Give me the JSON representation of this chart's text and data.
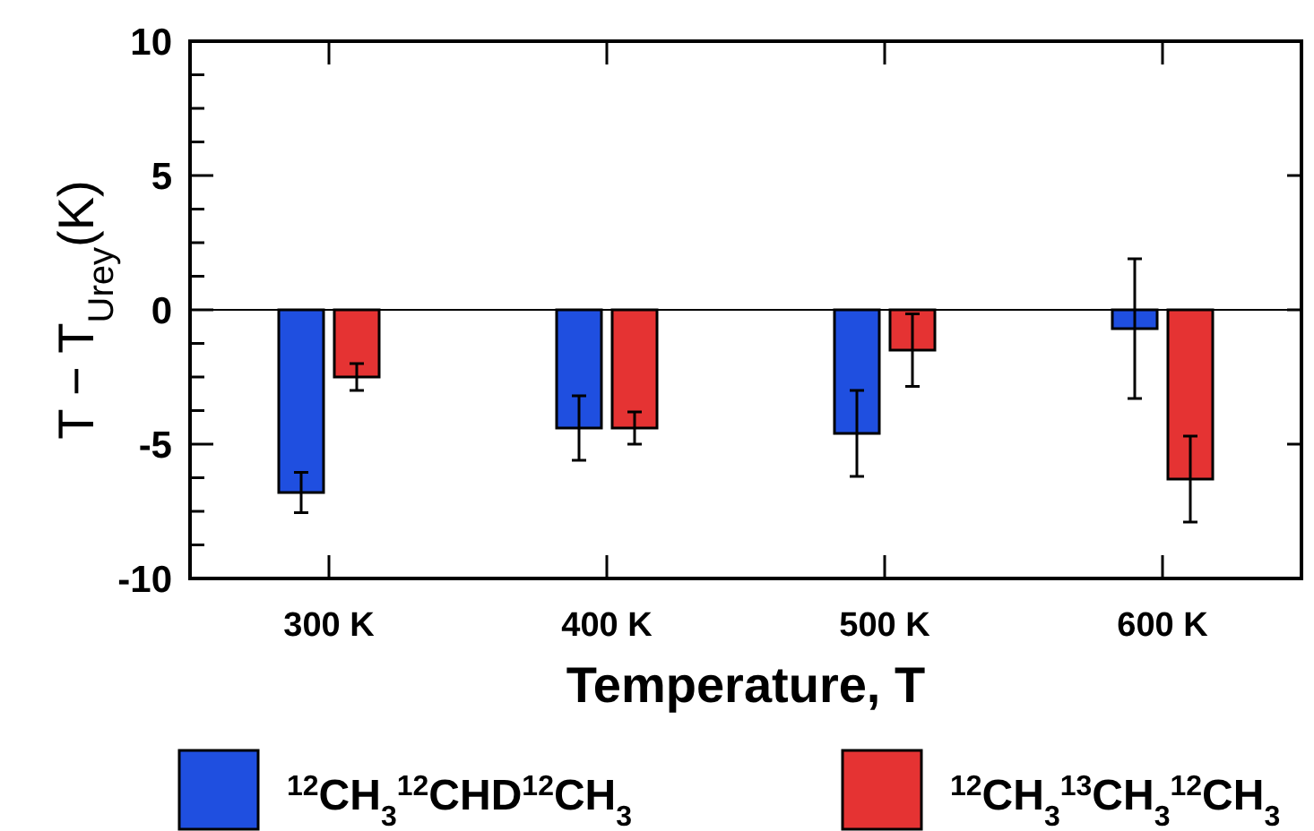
{
  "chart_data": {
    "type": "bar",
    "xlabel": "Temperature, T",
    "ylabel": "T − T$_{Urey}$(K)",
    "categories": [
      "300 K",
      "400 K",
      "500 K",
      "600 K"
    ],
    "series": [
      {
        "name": "$^{12}$CH$_{3}$$^{12}$CHD$^{12}$CH$_{3}$",
        "color": "#1f4fe0",
        "values": [
          -6.8,
          -4.4,
          -4.6,
          -0.7
        ],
        "errors": [
          0.75,
          1.2,
          1.6,
          2.6
        ]
      },
      {
        "name": "$^{12}$CH$_{3}$$^{13}$CH$_{3}$$^{12}$CH$_{3}$",
        "color": "#e53333",
        "values": [
          -2.5,
          -4.4,
          -1.5,
          -6.3
        ],
        "errors": [
          0.5,
          0.6,
          1.35,
          1.6
        ]
      }
    ],
    "ylim": [
      -10,
      10
    ],
    "yticks": [
      -10,
      {
        "value": -8.75,
        "label": null
      },
      {
        "value": -7.5,
        "label": null
      },
      {
        "value": -6.25,
        "label": null
      },
      -5,
      {
        "value": -3.75,
        "label": null
      },
      {
        "value": -2.5,
        "label": null
      },
      {
        "value": -1.25,
        "label": null
      },
      0,
      {
        "value": 1.25,
        "label": null
      },
      {
        "value": 2.5,
        "label": null
      },
      {
        "value": 3.75,
        "label": null
      },
      5,
      {
        "value": 6.25,
        "label": null
      },
      {
        "value": 7.5,
        "label": null
      },
      {
        "value": 8.75,
        "label": null
      },
      10
    ],
    "ref_lines": [
      {
        "axis": "y",
        "value": 0
      }
    ],
    "legend": "bottom"
  }
}
